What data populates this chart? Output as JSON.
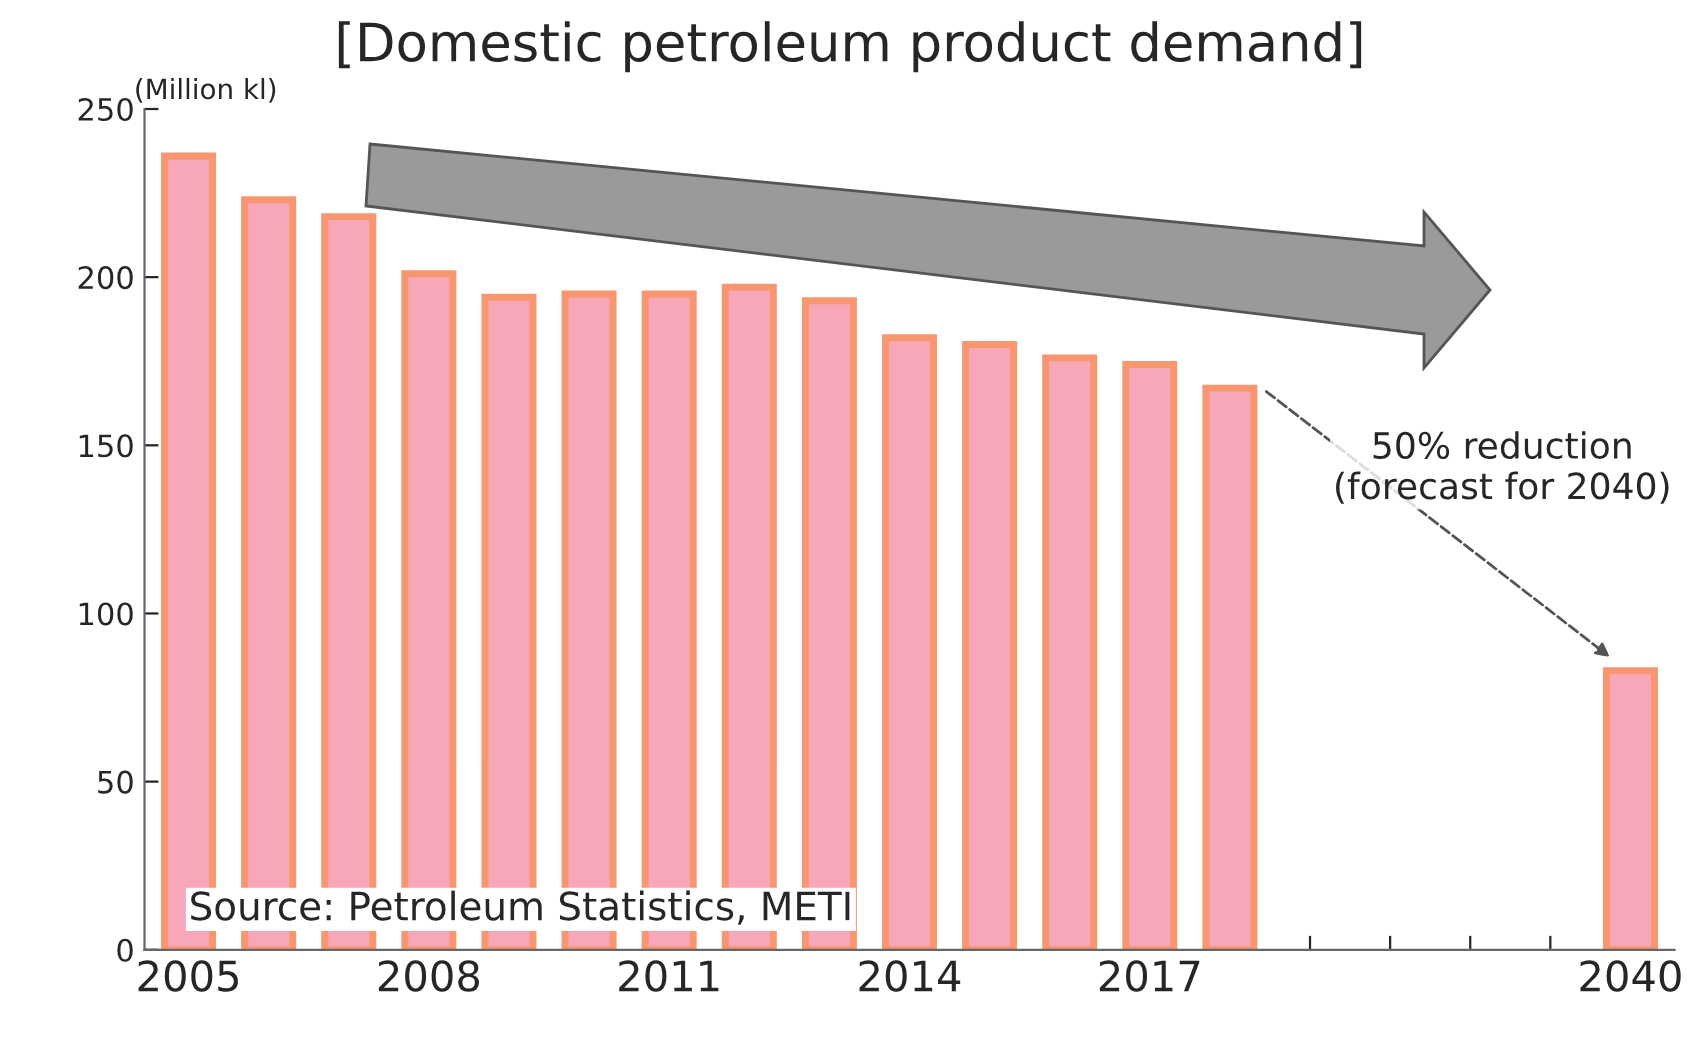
{
  "chart_data": {
    "type": "bar",
    "title": "[Domestic petroleum product demand]",
    "ylabel": "(Million kl)",
    "categories": [
      "2005",
      null,
      null,
      "2008",
      null,
      null,
      "2011",
      null,
      null,
      "2014",
      null,
      null,
      "2017",
      null,
      null,
      null,
      null,
      null,
      "2040"
    ],
    "values": [
      236,
      223,
      218,
      201,
      194,
      195,
      195,
      197,
      193,
      182,
      180,
      176,
      174,
      167,
      null,
      null,
      null,
      null,
      83
    ],
    "color": "#f7a7b8",
    "ylim": [
      0,
      250
    ],
    "yticks": [
      0,
      50,
      100,
      150,
      200,
      250
    ],
    "grid": false,
    "legend": false,
    "annotations": [
      "50% reduction\n(forecast for 2040)",
      "Source: Petroleum Statistics, METI"
    ]
  }
}
